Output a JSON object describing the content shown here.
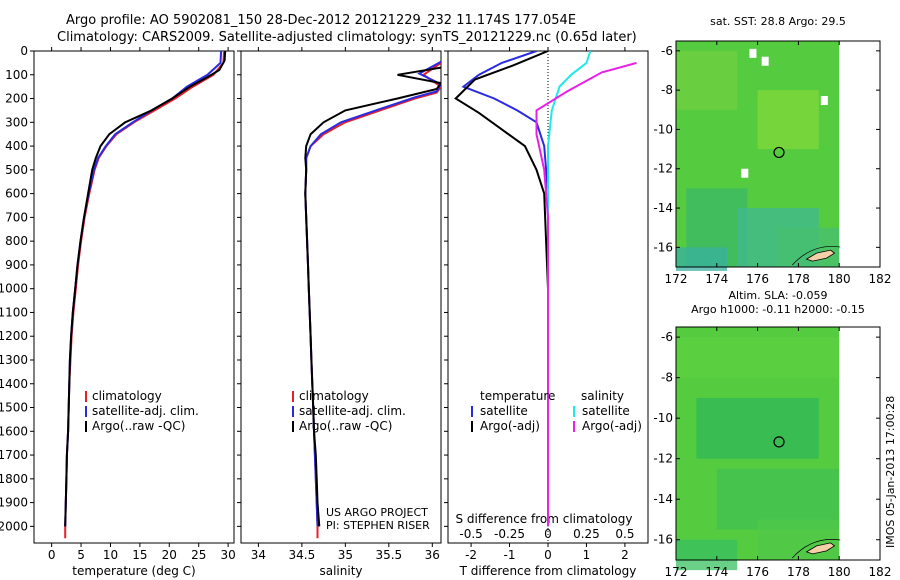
{
  "header": {
    "line1": "Argo profile: AO 5902081_150 28-Dec-2012 20121229_232 11.174S 177.054E",
    "line2": "Climatology: CARS2009. Satellite-adjusted climatology: synTS_20121229.nc (0.65d later)"
  },
  "side_label": "IMOS 05-Jan-2013 17:00:28",
  "project": {
    "line1": "US ARGO PROJECT",
    "line2": "PI: STEPHEN RISER"
  },
  "colors": {
    "climatology": "#e8202a",
    "satellite": "#2a2ae0",
    "argo": "#000000",
    "sal_satellite": "#20e8e8",
    "sal_argo": "#e820e8",
    "map_green": "#55cc40"
  },
  "chart_data": [
    {
      "type": "line",
      "xlabel": "temperature (deg C)",
      "ylabel": "",
      "xlim": [
        -3,
        31
      ],
      "ylim": [
        2070,
        0
      ],
      "xticks": [
        0,
        5,
        10,
        15,
        20,
        25,
        30
      ],
      "yticks": [
        0,
        100,
        200,
        300,
        400,
        500,
        600,
        700,
        800,
        900,
        1000,
        1100,
        1200,
        1300,
        1400,
        1500,
        1600,
        1700,
        1800,
        1900,
        2000
      ],
      "legend": [
        "climatology",
        "satellite-adj. clim.",
        "Argo(..raw -QC)"
      ],
      "series": [
        {
          "name": "climatology",
          "points": [
            [
              29.3,
              0
            ],
            [
              29.2,
              50
            ],
            [
              27.5,
              100
            ],
            [
              24,
              150
            ],
            [
              21,
              200
            ],
            [
              17.5,
              250
            ],
            [
              14,
              300
            ],
            [
              11,
              350
            ],
            [
              9.3,
              400
            ],
            [
              8,
              450
            ],
            [
              7.3,
              500
            ],
            [
              6.4,
              600
            ],
            [
              5.6,
              700
            ],
            [
              5,
              800
            ],
            [
              4.5,
              900
            ],
            [
              4.1,
              1000
            ],
            [
              3.7,
              1100
            ],
            [
              3.4,
              1200
            ],
            [
              3.2,
              1300
            ],
            [
              3,
              1400
            ],
            [
              2.9,
              1500
            ],
            [
              2.8,
              1600
            ],
            [
              2.6,
              1700
            ],
            [
              2.5,
              1800
            ],
            [
              2.4,
              1900
            ],
            [
              2.3,
              2000
            ],
            [
              2.3,
              2050
            ]
          ]
        },
        {
          "name": "satellite-adj. clim.",
          "points": [
            [
              28.8,
              0
            ],
            [
              28.7,
              50
            ],
            [
              26.5,
              100
            ],
            [
              23,
              150
            ],
            [
              20.5,
              200
            ],
            [
              17,
              250
            ],
            [
              13.8,
              300
            ],
            [
              10.8,
              350
            ],
            [
              9.2,
              400
            ],
            [
              7.9,
              450
            ],
            [
              7.2,
              500
            ],
            [
              6.3,
              600
            ],
            [
              5.5,
              700
            ],
            [
              4.9,
              800
            ],
            [
              4.4,
              900
            ],
            [
              4,
              1000
            ],
            [
              3.6,
              1100
            ],
            [
              3.3,
              1200
            ],
            [
              3.1,
              1300
            ],
            [
              3,
              1400
            ],
            [
              2.9,
              1500
            ],
            [
              2.8,
              1600
            ],
            [
              2.6,
              1700
            ],
            [
              2.5,
              1800
            ],
            [
              2.4,
              1900
            ],
            [
              2.3,
              2000
            ]
          ]
        },
        {
          "name": "Argo(..raw -QC)",
          "points": [
            [
              29.5,
              0
            ],
            [
              29.4,
              40
            ],
            [
              28.5,
              80
            ],
            [
              26.5,
              110
            ],
            [
              23.5,
              150
            ],
            [
              20.5,
              200
            ],
            [
              17,
              250
            ],
            [
              12.5,
              300
            ],
            [
              9.8,
              350
            ],
            [
              8.3,
              400
            ],
            [
              7.5,
              450
            ],
            [
              6.9,
              500
            ],
            [
              6.2,
              600
            ],
            [
              5.5,
              700
            ],
            [
              4.9,
              800
            ],
            [
              4.4,
              900
            ],
            [
              4,
              1000
            ],
            [
              3.6,
              1100
            ],
            [
              3.3,
              1200
            ],
            [
              3.1,
              1300
            ],
            [
              3,
              1400
            ],
            [
              2.9,
              1500
            ],
            [
              2.8,
              1600
            ],
            [
              2.6,
              1700
            ],
            [
              2.5,
              1800
            ],
            [
              2.4,
              1900
            ],
            [
              2.3,
              2000
            ]
          ]
        }
      ]
    },
    {
      "type": "line",
      "xlabel": "salinity",
      "ylabel": "",
      "xlim": [
        33.8,
        36.1
      ],
      "ylim": [
        2070,
        0
      ],
      "xticks": [
        34,
        34.5,
        35,
        35.5,
        36
      ],
      "legend": [
        "climatology",
        "satellite-adj. clim.",
        "Argo(..raw -QC)"
      ],
      "series": [
        {
          "name": "climatology",
          "points": [
            [
              36.1,
              50
            ],
            [
              35.9,
              100
            ],
            [
              36.1,
              150
            ],
            [
              36.05,
              175
            ],
            [
              35.8,
              200
            ],
            [
              35.4,
              250
            ],
            [
              35,
              300
            ],
            [
              34.75,
              350
            ],
            [
              34.6,
              400
            ],
            [
              34.55,
              450
            ],
            [
              34.55,
              500
            ],
            [
              34.54,
              600
            ],
            [
              34.55,
              700
            ],
            [
              34.56,
              800
            ],
            [
              34.57,
              900
            ],
            [
              34.58,
              1000
            ],
            [
              34.59,
              1100
            ],
            [
              34.6,
              1200
            ],
            [
              34.61,
              1300
            ],
            [
              34.62,
              1400
            ],
            [
              34.63,
              1500
            ],
            [
              34.64,
              1600
            ],
            [
              34.65,
              1700
            ],
            [
              34.66,
              1800
            ],
            [
              34.67,
              1900
            ],
            [
              34.68,
              2000
            ],
            [
              34.68,
              2050
            ]
          ]
        },
        {
          "name": "satellite-adj. clim.",
          "points": [
            [
              36.1,
              45
            ],
            [
              35.85,
              95
            ],
            [
              36.1,
              140
            ],
            [
              36.05,
              170
            ],
            [
              35.8,
              195
            ],
            [
              35.35,
              250
            ],
            [
              34.95,
              300
            ],
            [
              34.72,
              350
            ],
            [
              34.6,
              400
            ],
            [
              34.55,
              450
            ],
            [
              34.55,
              500
            ],
            [
              34.54,
              600
            ],
            [
              34.55,
              700
            ],
            [
              34.56,
              800
            ],
            [
              34.57,
              900
            ],
            [
              34.58,
              1000
            ],
            [
              34.59,
              1100
            ],
            [
              34.6,
              1200
            ],
            [
              34.61,
              1300
            ],
            [
              34.62,
              1400
            ],
            [
              34.63,
              1500
            ],
            [
              34.64,
              1600
            ],
            [
              34.65,
              1700
            ],
            [
              34.66,
              1800
            ],
            [
              34.67,
              1900
            ],
            [
              34.68,
              2000
            ]
          ]
        },
        {
          "name": "Argo(..raw -QC)",
          "points": [
            [
              36.1,
              70
            ],
            [
              35.6,
              100
            ],
            [
              36.1,
              135
            ],
            [
              36.05,
              160
            ],
            [
              35.6,
              200
            ],
            [
              35,
              250
            ],
            [
              34.75,
              300
            ],
            [
              34.6,
              350
            ],
            [
              34.55,
              400
            ],
            [
              34.54,
              450
            ],
            [
              34.55,
              500
            ],
            [
              34.54,
              600
            ],
            [
              34.55,
              700
            ],
            [
              34.56,
              800
            ],
            [
              34.57,
              900
            ],
            [
              34.58,
              1000
            ],
            [
              34.59,
              1100
            ],
            [
              34.6,
              1200
            ],
            [
              34.61,
              1300
            ],
            [
              34.62,
              1400
            ],
            [
              34.63,
              1500
            ],
            [
              34.64,
              1600
            ],
            [
              34.66,
              1700
            ],
            [
              34.67,
              1800
            ],
            [
              34.68,
              1900
            ],
            [
              34.7,
              2000
            ]
          ]
        }
      ]
    },
    {
      "type": "line",
      "xlabel": "T difference from climatology",
      "xlabel_top": "S difference from climatology",
      "xlim": [
        -2.6,
        2.6
      ],
      "ylim": [
        2070,
        0
      ],
      "xticks": [
        -2,
        -1,
        0,
        1,
        2
      ],
      "xticks_top": [
        "-0.5",
        "-0.25",
        "0",
        "0.25",
        "0.5"
      ],
      "legend": {
        "temperature_title": "temperature",
        "salinity_title": "salinity",
        "temperature": [
          "satellite",
          "Argo(-adj)"
        ],
        "salinity": [
          "satellite",
          "Argo(-adj)"
        ]
      },
      "series": [
        {
          "name": "satellite",
          "group": "temperature",
          "points": [
            [
              -0.3,
              0
            ],
            [
              -1.2,
              50
            ],
            [
              -1.8,
              100
            ],
            [
              -2.2,
              150
            ],
            [
              -1.4,
              200
            ],
            [
              -0.8,
              250
            ],
            [
              -0.3,
              300
            ],
            [
              -0.1,
              400
            ],
            [
              0,
              600
            ],
            [
              0,
              1000
            ],
            [
              0,
              2000
            ]
          ]
        },
        {
          "name": "Argo(-adj)",
          "group": "temperature",
          "points": [
            [
              0,
              0
            ],
            [
              -0.9,
              60
            ],
            [
              -1.9,
              120
            ],
            [
              -2.4,
              200
            ],
            [
              -1.8,
              260
            ],
            [
              -1.2,
              330
            ],
            [
              -0.6,
              400
            ],
            [
              -0.3,
              500
            ],
            [
              -0.1,
              600
            ],
            [
              0,
              1000
            ],
            [
              0,
              2000
            ]
          ]
        },
        {
          "name": "satellite",
          "group": "salinity",
          "points": [
            [
              1.1,
              0
            ],
            [
              1,
              50
            ],
            [
              0.6,
              100
            ],
            [
              0.3,
              150
            ],
            [
              0.1,
              250
            ],
            [
              0,
              400
            ],
            [
              0,
              2000
            ]
          ]
        },
        {
          "name": "Argo(-adj)",
          "group": "salinity",
          "points": [
            [
              2.3,
              50
            ],
            [
              1.4,
              90
            ],
            [
              0.5,
              170
            ],
            [
              -0.3,
              250
            ],
            [
              -0.3,
              350
            ],
            [
              -0.1,
              500
            ],
            [
              0,
              700
            ],
            [
              0,
              2000
            ]
          ]
        }
      ]
    },
    {
      "type": "heatmap",
      "title": "sat. SST: 28.8 Argo: 29.5",
      "xlim": [
        172,
        182
      ],
      "ylim": [
        -17,
        -5.5
      ],
      "xticks": [
        172,
        174,
        176,
        178,
        180,
        182
      ],
      "yticks": [
        -6,
        -8,
        -10,
        -12,
        -14,
        -16
      ],
      "marker": [
        177.05,
        -11.17
      ]
    },
    {
      "type": "heatmap",
      "title": "Altim. SLA: -0.059",
      "subtitle": "Argo h1000: -0.11 h2000: -0.15",
      "xlim": [
        172,
        182
      ],
      "ylim": [
        -17,
        -5.5
      ],
      "xticks": [
        172,
        174,
        176,
        178,
        180,
        182
      ],
      "yticks": [
        -6,
        -8,
        -10,
        -12,
        -14,
        -16
      ],
      "marker": [
        177.05,
        -11.17
      ]
    }
  ]
}
